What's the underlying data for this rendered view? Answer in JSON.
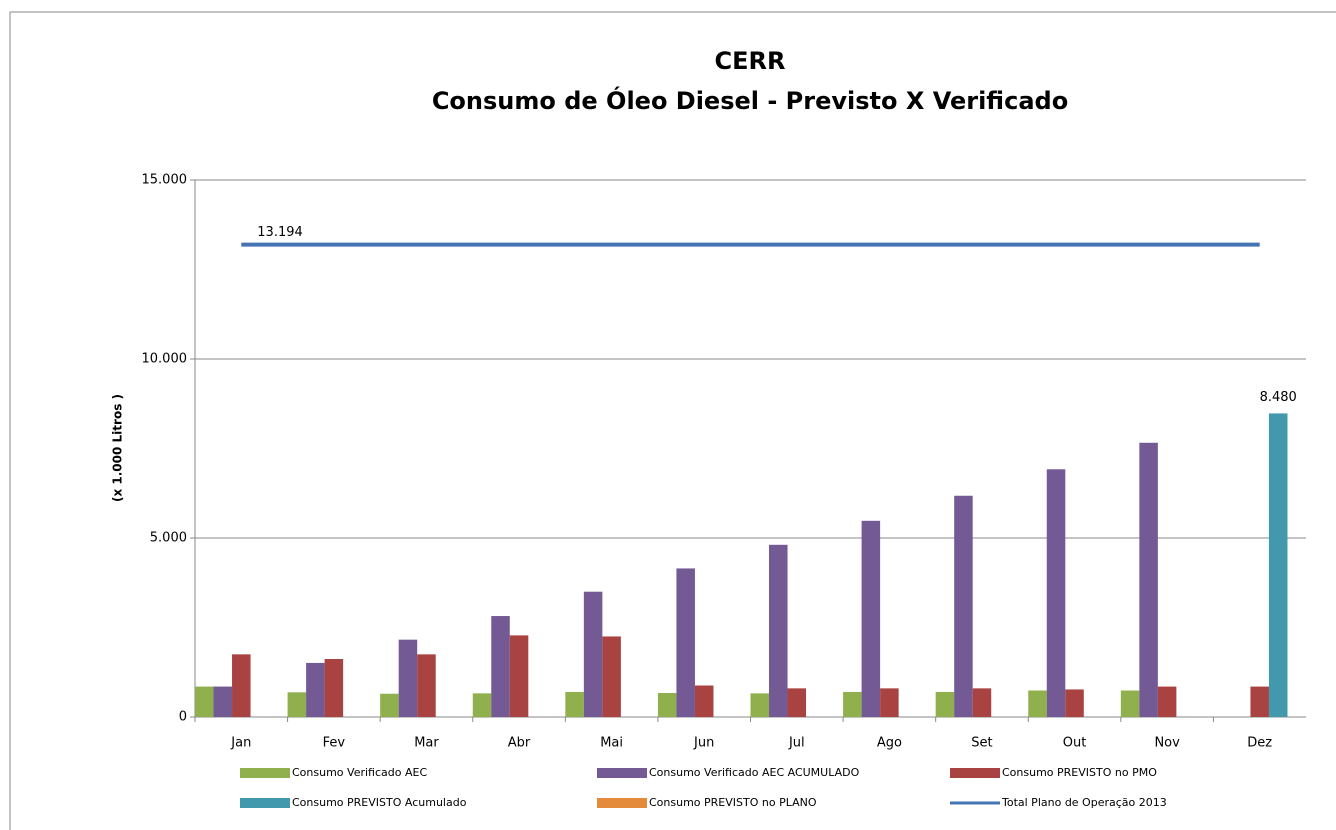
{
  "chart_data": {
    "type": "bar",
    "title": "CERR",
    "subtitle": "Consumo de Óleo Diesel - Previsto X Verificado",
    "y_label": "(x 1.000 Litros )",
    "categories": [
      "Jan",
      "Fev",
      "Mar",
      "Abr",
      "Mai",
      "Jun",
      "Jul",
      "Ago",
      "Set",
      "Out",
      "Nov",
      "Dez"
    ],
    "ylim": [
      0,
      15000
    ],
    "yticks": [
      0,
      {
        "value": 5000,
        "label": "5.000"
      },
      {
        "value": 10000,
        "label": "10.000"
      },
      {
        "value": 15000,
        "label": "15.000"
      }
    ],
    "grid": true,
    "legend": "bottom",
    "series": [
      {
        "name": "Consumo Verificado AEC",
        "color": "#8fb04c",
        "values": [
          850,
          690,
          650,
          660,
          700,
          670,
          660,
          700,
          700,
          740,
          740,
          null
        ]
      },
      {
        "name": "Consumo Verificado AEC ACUMULADO",
        "color": "#735a94",
        "values": [
          850,
          1510,
          2160,
          2820,
          3500,
          4150,
          4810,
          5480,
          6180,
          6920,
          7660,
          null
        ]
      },
      {
        "name": "Consumo PREVISTO no PMO",
        "color": "#a94341",
        "values": [
          1750,
          1620,
          1750,
          2280,
          2250,
          880,
          800,
          800,
          800,
          770,
          850,
          850
        ]
      },
      {
        "name": "Consumo PREVISTO Acumulado",
        "color": "#4298ad",
        "values": [
          null,
          null,
          null,
          null,
          null,
          null,
          null,
          null,
          null,
          null,
          null,
          8480
        ],
        "value_labels": [
          null,
          null,
          null,
          null,
          null,
          null,
          null,
          null,
          null,
          null,
          null,
          "8.480"
        ]
      },
      {
        "name": "Consumo PREVISTO no PLANO",
        "color": "#e38a3b",
        "values": [
          null,
          null,
          null,
          null,
          null,
          null,
          null,
          null,
          null,
          null,
          null,
          null
        ]
      },
      {
        "name": "Total Plano de Operação 2013",
        "color": "#4574b4",
        "type": "line",
        "values": [
          13194,
          13194,
          13194,
          13194,
          13194,
          13194,
          13194,
          13194,
          13194,
          13194,
          13194,
          13194
        ],
        "value_labels": [
          "13.194",
          null,
          null,
          null,
          null,
          null,
          null,
          null,
          null,
          null,
          null,
          null
        ]
      }
    ]
  }
}
